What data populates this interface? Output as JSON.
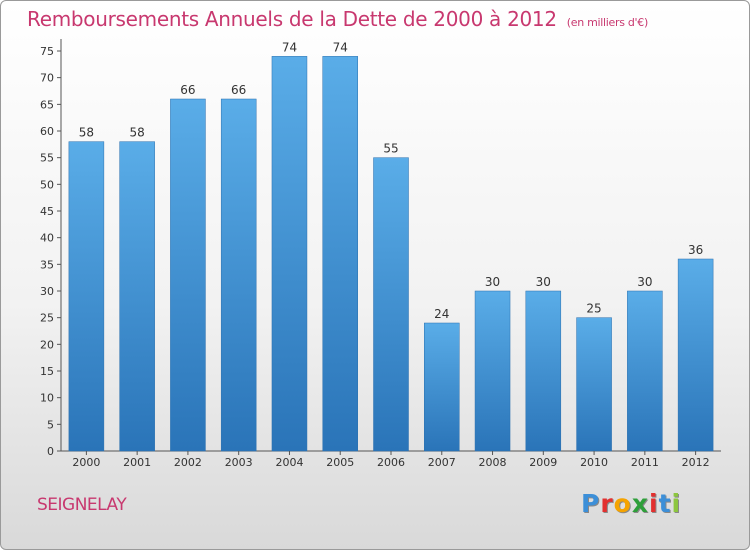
{
  "chart_data": {
    "type": "bar",
    "title": "Remboursements Annuels de la Dette de 2000 à 2012",
    "unit_note": "(en milliers d'€)",
    "categories": [
      "2000",
      "2001",
      "2002",
      "2003",
      "2004",
      "2005",
      "2006",
      "2007",
      "2008",
      "2009",
      "2010",
      "2011",
      "2012"
    ],
    "values": [
      58,
      58,
      66,
      66,
      74,
      74,
      55,
      24,
      30,
      30,
      25,
      30,
      36
    ],
    "ylim": [
      0,
      75
    ],
    "yticks": [
      0,
      5,
      10,
      15,
      20,
      25,
      30,
      35,
      40,
      45,
      50,
      55,
      60,
      65,
      70,
      75
    ],
    "grid": false,
    "bar_color": "#3a8fd6",
    "bar_color_top": "#5aade8",
    "bar_color_bottom": "#2a74b8"
  },
  "colors": {
    "accent": "#c8386f"
  },
  "footer": {
    "city": "SEIGNELAY",
    "logo_letters": [
      "P",
      "r",
      "o",
      "x",
      "i",
      "t",
      "i"
    ],
    "logo_colors": [
      "#3c8fd8",
      "#e2302f",
      "#f5a300",
      "#2e9f3a",
      "#e2302f",
      "#3c8fd8",
      "#8dc63f"
    ]
  }
}
